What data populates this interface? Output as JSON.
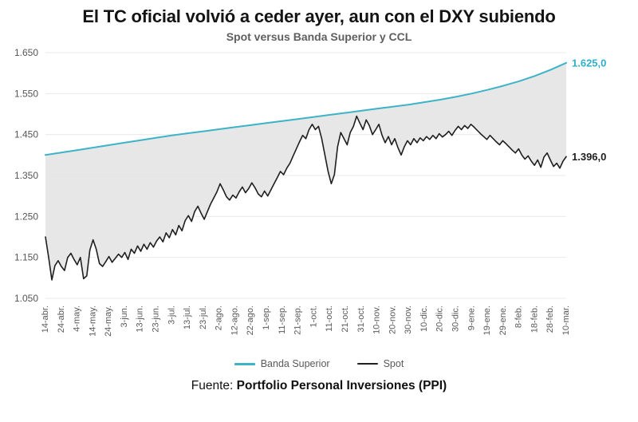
{
  "header": {
    "title": "El TC oficial volvió a ceder ayer, aun con el DXY subiendo",
    "subtitle": "Spot versus Banda Superior y CCL"
  },
  "chart_data": {
    "type": "line",
    "title": "Spot versus Banda Superior y CCL",
    "ylim": [
      1050,
      1650
    ],
    "grid": "horizontal-faint",
    "legend_position": "bottom",
    "y_ticks": [
      {
        "label": "1.050",
        "value": 1050
      },
      {
        "label": "1.150",
        "value": 1150
      },
      {
        "label": "1.250",
        "value": 1250
      },
      {
        "label": "1.350",
        "value": 1350
      },
      {
        "label": "1.450",
        "value": 1450
      },
      {
        "label": "1.550",
        "value": 1550
      },
      {
        "label": "1.650",
        "value": 1650
      }
    ],
    "x_tick_labels": [
      "14-abr.",
      "24-abr.",
      "4-may.",
      "14-may.",
      "24-may.",
      "3-jun.",
      "13-jun.",
      "23-jun.",
      "3-jul.",
      "13-jul.",
      "23-jul.",
      "2-ago.",
      "12-ago.",
      "22-ago.",
      "1-sep.",
      "11-sep.",
      "21-sep.",
      "1-oct.",
      "11-oct.",
      "21-oct.",
      "31-oct.",
      "10-nov.",
      "20-nov.",
      "30-nov.",
      "10-dic.",
      "20-dic.",
      "30-dic.",
      "9-ene.",
      "19-ene.",
      "29-ene.",
      "8-feb.",
      "18-feb.",
      "28-feb.",
      "10-mar."
    ],
    "fill_between_color": "#e4e4e4",
    "series": [
      {
        "name": "Banda Superior",
        "color": "#3db3c8",
        "values": [
          1400,
          1406,
          1412,
          1418,
          1424,
          1430,
          1436,
          1442,
          1448,
          1453,
          1458,
          1463,
          1468,
          1473,
          1478,
          1483,
          1488,
          1493,
          1498,
          1503,
          1508,
          1513,
          1518,
          1523,
          1529,
          1535,
          1542,
          1550,
          1559,
          1569,
          1580,
          1593,
          1608,
          1625
        ]
      },
      {
        "name": "Spot",
        "color": "#1f1f1f",
        "values": [
          1200,
          1150,
          1095,
          1130,
          1142,
          1128,
          1118,
          1150,
          1160,
          1145,
          1132,
          1150,
          1098,
          1105,
          1168,
          1193,
          1170,
          1135,
          1128,
          1140,
          1152,
          1138,
          1148,
          1158,
          1150,
          1162,
          1145,
          1170,
          1160,
          1178,
          1165,
          1182,
          1170,
          1186,
          1175,
          1190,
          1200,
          1188,
          1210,
          1198,
          1218,
          1205,
          1228,
          1215,
          1240,
          1252,
          1238,
          1262,
          1275,
          1258,
          1243,
          1262,
          1280,
          1295,
          1310,
          1330,
          1315,
          1298,
          1290,
          1302,
          1295,
          1310,
          1322,
          1308,
          1318,
          1332,
          1320,
          1305,
          1298,
          1312,
          1300,
          1315,
          1330,
          1345,
          1360,
          1352,
          1368,
          1380,
          1398,
          1415,
          1432,
          1448,
          1440,
          1462,
          1475,
          1462,
          1470,
          1440,
          1400,
          1360,
          1330,
          1352,
          1420,
          1455,
          1440,
          1425,
          1455,
          1470,
          1495,
          1478,
          1462,
          1486,
          1472,
          1450,
          1462,
          1475,
          1448,
          1430,
          1445,
          1425,
          1440,
          1418,
          1400,
          1420,
          1435,
          1425,
          1440,
          1430,
          1442,
          1435,
          1445,
          1438,
          1448,
          1440,
          1452,
          1444,
          1450,
          1458,
          1448,
          1460,
          1470,
          1462,
          1472,
          1465,
          1475,
          1468,
          1460,
          1452,
          1445,
          1438,
          1448,
          1440,
          1432,
          1425,
          1435,
          1428,
          1420,
          1412,
          1405,
          1415,
          1400,
          1390,
          1398,
          1385,
          1375,
          1388,
          1370,
          1395,
          1405,
          1388,
          1372,
          1380,
          1368,
          1385,
          1396
        ]
      }
    ],
    "end_labels": [
      {
        "text": "1.625,0",
        "value": 1625,
        "color": "#2fafc9",
        "series": "Banda Superior"
      },
      {
        "text": "1.396,0",
        "value": 1396,
        "color": "#1f1f1f",
        "series": "Spot"
      }
    ]
  },
  "legend": {
    "items": [
      {
        "label": "Banda Superior",
        "color": "#3db3c8"
      },
      {
        "label": "Spot",
        "color": "#1f1f1f"
      }
    ]
  },
  "footer": {
    "source_label": "Fuente:",
    "source_name": "Portfolio Personal Inversiones (PPI)"
  }
}
